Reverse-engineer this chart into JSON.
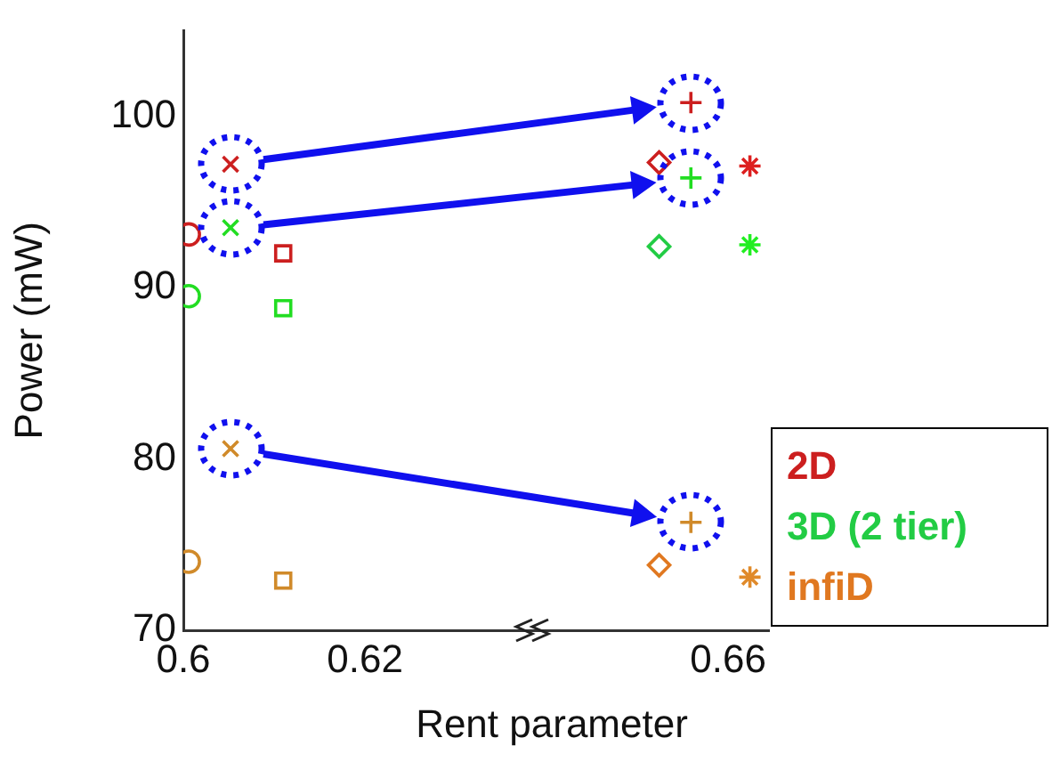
{
  "chart_data": {
    "type": "scatter",
    "ylabel": "Power (mW)",
    "xlabel": "Rent parameter",
    "xlim": [
      0.6,
      0.6645
    ],
    "xticks": [
      0.6,
      0.62,
      0.66
    ],
    "ylim": [
      70,
      105
    ],
    "yticks": [
      70,
      80,
      90,
      100
    ],
    "grid": false,
    "legend": "bottom right",
    "series": [
      {
        "marker": "circle",
        "color": "#cc1f1f",
        "x": [
          0.6006
        ],
        "values": [
          93.1
        ]
      },
      {
        "marker": "circle",
        "color": "#22dd22",
        "x": [
          0.6006
        ],
        "values": [
          89.5
        ]
      },
      {
        "marker": "circle",
        "color": "#d08a2a",
        "x": [
          0.6006
        ],
        "values": [
          74.0
        ]
      },
      {
        "marker": "x",
        "color": "#cc1f1f",
        "x": [
          0.6052
        ],
        "values": [
          97.2
        ]
      },
      {
        "marker": "x",
        "color": "#22dd22",
        "x": [
          0.6052
        ],
        "values": [
          93.5
        ]
      },
      {
        "marker": "x",
        "color": "#d08a2a",
        "x": [
          0.6052
        ],
        "values": [
          80.6
        ]
      },
      {
        "marker": "square",
        "color": "#cc1f1f",
        "x": [
          0.611
        ],
        "values": [
          92.0
        ]
      },
      {
        "marker": "square",
        "color": "#22dd22",
        "x": [
          0.611
        ],
        "values": [
          88.8
        ]
      },
      {
        "marker": "square",
        "color": "#d08a2a",
        "x": [
          0.611
        ],
        "values": [
          72.9
        ]
      },
      {
        "name": "2D",
        "marker": "diamond",
        "color": "#cc1f1f",
        "x": [
          0.6524
        ],
        "values": [
          97.3
        ]
      },
      {
        "name": "3D (2 tier)",
        "marker": "diamond",
        "color": "#22cc44",
        "x": [
          0.6524
        ],
        "values": [
          92.4
        ]
      },
      {
        "name": "infiD",
        "marker": "diamond",
        "color": "#e07820",
        "x": [
          0.6524
        ],
        "values": [
          73.8
        ]
      },
      {
        "marker": "plus",
        "color": "#cc1f1f",
        "x": [
          0.6559
        ],
        "values": [
          100.8
        ]
      },
      {
        "marker": "plus",
        "color": "#22dd22",
        "x": [
          0.6559
        ],
        "values": [
          96.4
        ]
      },
      {
        "marker": "plus",
        "color": "#d08a2a",
        "x": [
          0.6559
        ],
        "values": [
          76.3
        ]
      },
      {
        "marker": "cross",
        "color": "#dd1f1f",
        "x": [
          0.6624
        ],
        "values": [
          97.1
        ]
      },
      {
        "marker": "cross",
        "color": "#22ee22",
        "x": [
          0.6624
        ],
        "values": [
          92.5
        ]
      },
      {
        "marker": "cross",
        "color": "#e08a2a",
        "x": [
          0.6624
        ],
        "values": [
          73.1
        ]
      }
    ]
  }
}
